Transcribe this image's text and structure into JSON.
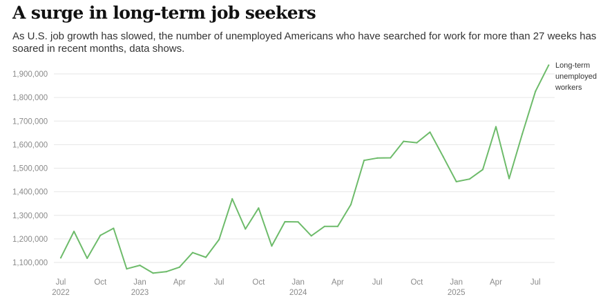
{
  "title": "A surge in long-term job seekers",
  "subtitle": "As U.S. job growth has slowed, the number of unemployed Americans who have searched for work for more than 27 weeks has soared in recent months, data shows.",
  "chart_data": {
    "type": "line",
    "title": "A surge in long-term job seekers",
    "xlabel": "",
    "ylabel": "",
    "ylim": [
      1050000,
      1950000
    ],
    "yticks": [
      1100000,
      1200000,
      1300000,
      1400000,
      1500000,
      1600000,
      1700000,
      1800000,
      1900000
    ],
    "ytick_labels": [
      "1,100,000",
      "1,200,000",
      "1,300,000",
      "1,400,000",
      "1,500,000",
      "1,600,000",
      "1,700,000",
      "1,800,000",
      "1,900,000"
    ],
    "xticks": [
      {
        "date": "2022-07",
        "month": "Jul",
        "year": "2022"
      },
      {
        "date": "2022-10",
        "month": "Oct",
        "year": ""
      },
      {
        "date": "2023-01",
        "month": "Jan",
        "year": "2023"
      },
      {
        "date": "2023-04",
        "month": "Apr",
        "year": ""
      },
      {
        "date": "2023-07",
        "month": "Jul",
        "year": ""
      },
      {
        "date": "2023-10",
        "month": "Oct",
        "year": ""
      },
      {
        "date": "2024-01",
        "month": "Jan",
        "year": "2024"
      },
      {
        "date": "2024-04",
        "month": "Apr",
        "year": ""
      },
      {
        "date": "2024-07",
        "month": "Jul",
        "year": ""
      },
      {
        "date": "2024-10",
        "month": "Oct",
        "year": ""
      },
      {
        "date": "2025-01",
        "month": "Jan",
        "year": "2025"
      },
      {
        "date": "2025-04",
        "month": "Apr",
        "year": ""
      },
      {
        "date": "2025-07",
        "month": "Jul",
        "year": ""
      }
    ],
    "grid": true,
    "series": [
      {
        "name": "Long-term unemployed workers",
        "label_lines": [
          "Long-term",
          "unemployed",
          "workers"
        ],
        "color": "#6dbb6a",
        "points": [
          {
            "x": "2022-07",
            "y": 1120000
          },
          {
            "x": "2022-08",
            "y": 1232000
          },
          {
            "x": "2022-09",
            "y": 1118000
          },
          {
            "x": "2022-10",
            "y": 1215000
          },
          {
            "x": "2022-11",
            "y": 1245000
          },
          {
            "x": "2022-12",
            "y": 1073000
          },
          {
            "x": "2023-01",
            "y": 1088000
          },
          {
            "x": "2023-02",
            "y": 1055000
          },
          {
            "x": "2023-03",
            "y": 1061000
          },
          {
            "x": "2023-04",
            "y": 1080000
          },
          {
            "x": "2023-05",
            "y": 1142000
          },
          {
            "x": "2023-06",
            "y": 1122000
          },
          {
            "x": "2023-07",
            "y": 1197000
          },
          {
            "x": "2023-08",
            "y": 1370000
          },
          {
            "x": "2023-09",
            "y": 1242000
          },
          {
            "x": "2023-10",
            "y": 1331000
          },
          {
            "x": "2023-11",
            "y": 1170000
          },
          {
            "x": "2023-12",
            "y": 1273000
          },
          {
            "x": "2024-01",
            "y": 1272000
          },
          {
            "x": "2024-02",
            "y": 1213000
          },
          {
            "x": "2024-03",
            "y": 1253000
          },
          {
            "x": "2024-04",
            "y": 1253000
          },
          {
            "x": "2024-05",
            "y": 1346000
          },
          {
            "x": "2024-06",
            "y": 1533000
          },
          {
            "x": "2024-07",
            "y": 1543000
          },
          {
            "x": "2024-08",
            "y": 1544000
          },
          {
            "x": "2024-09",
            "y": 1614000
          },
          {
            "x": "2024-10",
            "y": 1608000
          },
          {
            "x": "2024-11",
            "y": 1653000
          },
          {
            "x": "2024-12",
            "y": 1549000
          },
          {
            "x": "2025-01",
            "y": 1443000
          },
          {
            "x": "2025-02",
            "y": 1454000
          },
          {
            "x": "2025-03",
            "y": 1494000
          },
          {
            "x": "2025-04",
            "y": 1676000
          },
          {
            "x": "2025-05",
            "y": 1456000
          },
          {
            "x": "2025-06",
            "y": 1645000
          },
          {
            "x": "2025-07",
            "y": 1826000
          },
          {
            "x": "2025-08",
            "y": 1937000
          }
        ]
      }
    ]
  }
}
